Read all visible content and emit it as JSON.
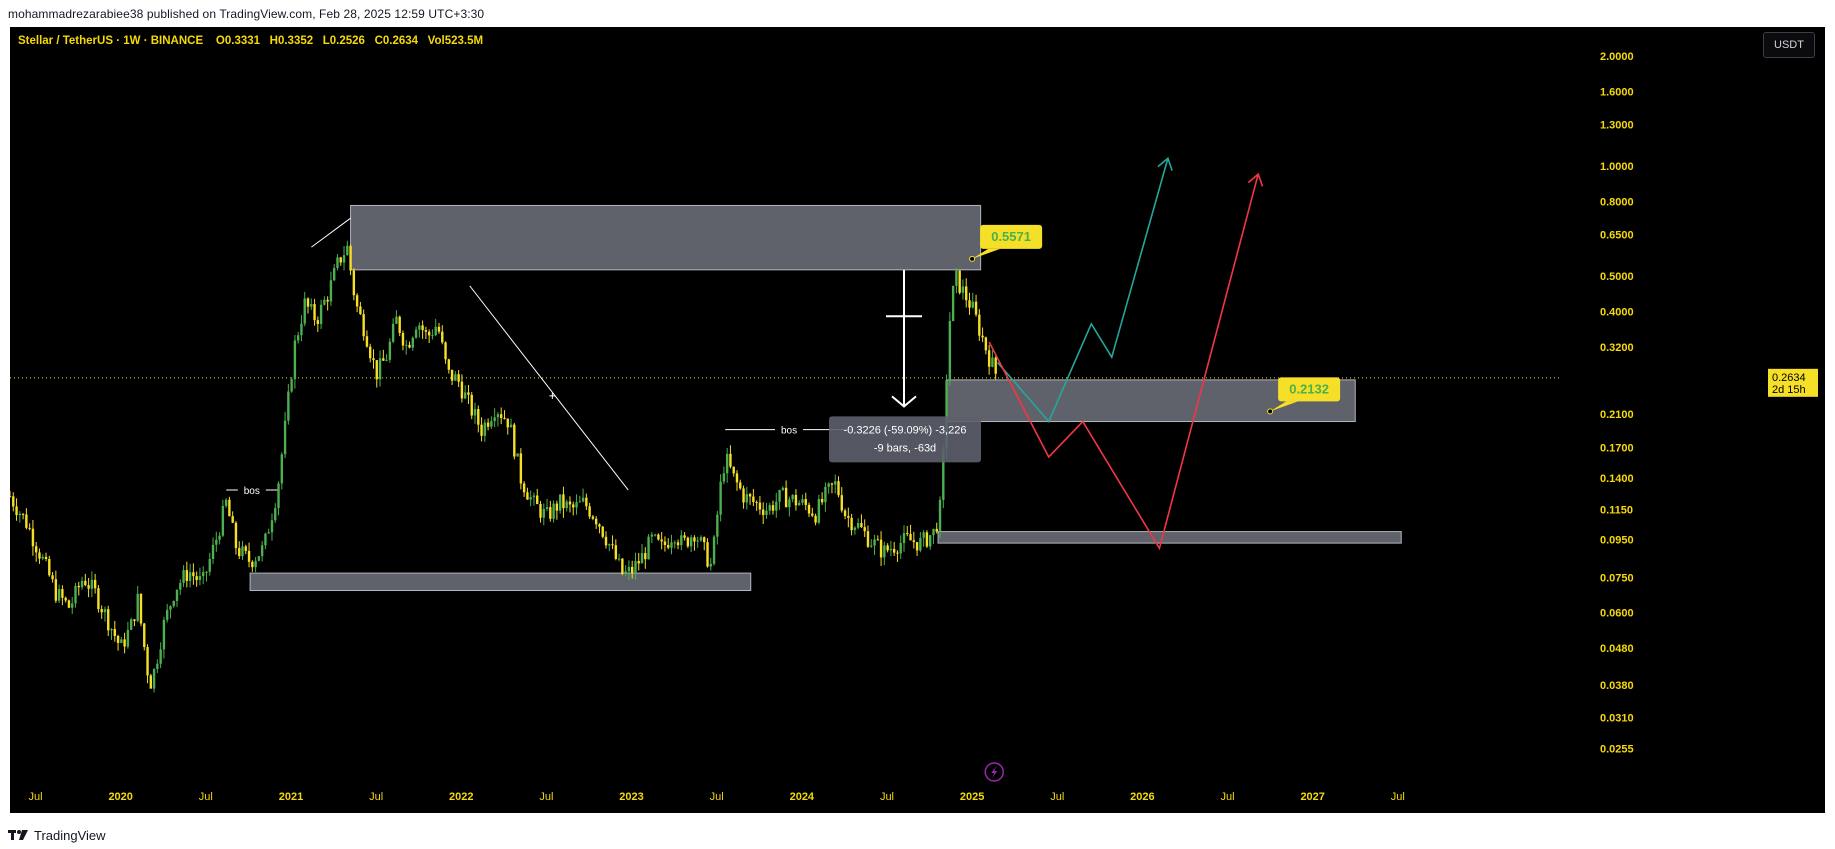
{
  "header": {
    "publish_text": "mohammadrezarabiee38 published on TradingView.com, Feb 28, 2025 12:59 UTC+3:30"
  },
  "symbol": {
    "name": "Stellar / TetherUS",
    "interval": "1W",
    "exchange": "BINANCE",
    "open": "O0.3331",
    "high": "H0.3352",
    "low": "L0.2526",
    "close": "C0.2634",
    "volume": "Vol523.5M"
  },
  "currency_button": "USDT",
  "footer": {
    "brand": "TradingView"
  },
  "colors": {
    "background": "#000000",
    "candle_up": "#4caf50",
    "candle_down": "#f5e027",
    "zone_fill": "#787b86",
    "projection_green": "#26a69a",
    "projection_red": "#f23645",
    "label_bg": "#f5e027",
    "label_text": "#4caf50",
    "axis_text": "#f5d90a"
  },
  "chart_data": {
    "type": "candlestick",
    "scale": "log",
    "y_axis": {
      "ticks": [
        "2.0000",
        "1.6000",
        "1.3000",
        "1.0000",
        "0.8000",
        "0.6500",
        "0.5000",
        "0.4000",
        "0.3200",
        "0.2100",
        "0.1700",
        "0.1400",
        "0.1150",
        "0.0950",
        "0.0750",
        "0.0600",
        "0.0480",
        "0.0380",
        "0.0310",
        "0.0255"
      ],
      "tick_values": [
        2.0,
        1.6,
        1.3,
        1.0,
        0.8,
        0.65,
        0.5,
        0.4,
        0.32,
        0.21,
        0.17,
        0.14,
        0.115,
        0.095,
        0.075,
        0.06,
        0.048,
        0.038,
        0.031,
        0.0255
      ],
      "range": [
        0.022,
        2.4
      ]
    },
    "x_axis": {
      "ticks": [
        "Jul",
        "2020",
        "Jul",
        "2021",
        "Jul",
        "2022",
        "Jul",
        "2023",
        "Jul",
        "2024",
        "Jul",
        "2025",
        "Jul",
        "2026",
        "Jul",
        "2027",
        "Jul"
      ],
      "tick_years": [
        2019.5,
        2020.0,
        2020.5,
        2021.0,
        2021.5,
        2022.0,
        2022.5,
        2023.0,
        2023.5,
        2024.0,
        2024.5,
        2025.0,
        2025.5,
        2026.0,
        2026.5,
        2027.0,
        2027.5
      ],
      "range": [
        2019.35,
        2028.1
      ]
    },
    "current_price": {
      "value": 0.2634,
      "label": "0.2634",
      "countdown": "2d 15h"
    },
    "price_path": [
      [
        2019.35,
        0.125
      ],
      [
        2019.45,
        0.105
      ],
      [
        2019.55,
        0.082
      ],
      [
        2019.62,
        0.068
      ],
      [
        2019.7,
        0.062
      ],
      [
        2019.78,
        0.075
      ],
      [
        2019.85,
        0.068
      ],
      [
        2019.92,
        0.058
      ],
      [
        2020.0,
        0.048
      ],
      [
        2020.06,
        0.055
      ],
      [
        2020.1,
        0.065
      ],
      [
        2020.17,
        0.038
      ],
      [
        2020.2,
        0.042
      ],
      [
        2020.25,
        0.055
      ],
      [
        2020.32,
        0.07
      ],
      [
        2020.4,
        0.078
      ],
      [
        2020.48,
        0.072
      ],
      [
        2020.56,
        0.095
      ],
      [
        2020.62,
        0.12
      ],
      [
        2020.68,
        0.09
      ],
      [
        2020.76,
        0.083
      ],
      [
        2020.84,
        0.09
      ],
      [
        2020.92,
        0.13
      ],
      [
        2020.97,
        0.2
      ],
      [
        2021.02,
        0.32
      ],
      [
        2021.08,
        0.42
      ],
      [
        2021.15,
        0.38
      ],
      [
        2021.22,
        0.45
      ],
      [
        2021.28,
        0.55
      ],
      [
        2021.33,
        0.6
      ],
      [
        2021.38,
        0.42
      ],
      [
        2021.44,
        0.35
      ],
      [
        2021.5,
        0.27
      ],
      [
        2021.56,
        0.3
      ],
      [
        2021.62,
        0.38
      ],
      [
        2021.68,
        0.32
      ],
      [
        2021.74,
        0.38
      ],
      [
        2021.8,
        0.34
      ],
      [
        2021.86,
        0.37
      ],
      [
        2021.92,
        0.27
      ],
      [
        2021.98,
        0.26
      ],
      [
        2022.05,
        0.22
      ],
      [
        2022.12,
        0.19
      ],
      [
        2022.2,
        0.22
      ],
      [
        2022.28,
        0.2
      ],
      [
        2022.35,
        0.14
      ],
      [
        2022.42,
        0.12
      ],
      [
        2022.5,
        0.11
      ],
      [
        2022.58,
        0.12
      ],
      [
        2022.65,
        0.115
      ],
      [
        2022.72,
        0.12
      ],
      [
        2022.8,
        0.108
      ],
      [
        2022.88,
        0.09
      ],
      [
        2022.95,
        0.076
      ],
      [
        2023.0,
        0.078
      ],
      [
        2023.06,
        0.085
      ],
      [
        2023.12,
        0.095
      ],
      [
        2023.18,
        0.09
      ],
      [
        2023.25,
        0.1
      ],
      [
        2023.3,
        0.092
      ],
      [
        2023.37,
        0.1
      ],
      [
        2023.42,
        0.09
      ],
      [
        2023.47,
        0.08
      ],
      [
        2023.52,
        0.13
      ],
      [
        2023.55,
        0.16
      ],
      [
        2023.6,
        0.14
      ],
      [
        2023.66,
        0.125
      ],
      [
        2023.72,
        0.12
      ],
      [
        2023.8,
        0.115
      ],
      [
        2023.88,
        0.125
      ],
      [
        2023.95,
        0.122
      ],
      [
        2024.02,
        0.118
      ],
      [
        2024.08,
        0.112
      ],
      [
        2024.15,
        0.128
      ],
      [
        2024.2,
        0.135
      ],
      [
        2024.26,
        0.11
      ],
      [
        2024.32,
        0.105
      ],
      [
        2024.4,
        0.095
      ],
      [
        2024.48,
        0.088
      ],
      [
        2024.55,
        0.092
      ],
      [
        2024.62,
        0.095
      ],
      [
        2024.7,
        0.093
      ],
      [
        2024.78,
        0.1
      ],
      [
        2024.82,
        0.12
      ],
      [
        2024.86,
        0.35
      ],
      [
        2024.9,
        0.5
      ],
      [
        2024.95,
        0.45
      ],
      [
        2025.0,
        0.41
      ],
      [
        2025.05,
        0.35
      ],
      [
        2025.1,
        0.3
      ],
      [
        2025.15,
        0.2634
      ]
    ],
    "zones": [
      {
        "x0": 2021.35,
        "x1": 2025.05,
        "y0": 0.52,
        "y1": 0.78
      },
      {
        "x0": 2020.76,
        "x1": 2023.7,
        "y0": 0.069,
        "y1": 0.077
      },
      {
        "x0": 2024.85,
        "x1": 2027.25,
        "y0": 0.2,
        "y1": 0.26
      },
      {
        "x0": 2024.8,
        "x1": 2027.52,
        "y0": 0.093,
        "y1": 0.1
      }
    ],
    "price_labels": [
      {
        "text": "0.5571",
        "year": 2025.0,
        "value": 0.5571
      },
      {
        "text": "0.2132",
        "year": 2026.75,
        "value": 0.2132
      }
    ],
    "measurement": {
      "line1": "-0.3226 (-59.09%) -3,226",
      "line2": "-9 bars, -63d",
      "year": 2024.6,
      "top": 0.52,
      "bottom": 0.22
    },
    "bos_labels": [
      {
        "text": "bos",
        "year_start": 2020.62,
        "year_end": 2020.92,
        "value": 0.13
      },
      {
        "text": "bos",
        "year_start": 2023.55,
        "year_end": 2024.3,
        "value": 0.19
      }
    ],
    "trendlines": [
      {
        "points": [
          [
            2021.12,
            0.6
          ],
          [
            2021.35,
            0.72
          ]
        ],
        "color": "#ffffff"
      },
      {
        "points": [
          [
            2022.05,
            0.47
          ],
          [
            2022.98,
            0.13
          ]
        ],
        "color": "#ffffff"
      }
    ],
    "projections": [
      {
        "color": "#26a69a",
        "points": [
          [
            2025.15,
            0.29
          ],
          [
            2025.45,
            0.2
          ],
          [
            2025.7,
            0.37
          ],
          [
            2025.82,
            0.3
          ],
          [
            2026.15,
            1.05
          ]
        ]
      },
      {
        "color": "#f23645",
        "points": [
          [
            2025.1,
            0.33
          ],
          [
            2025.45,
            0.16
          ],
          [
            2025.65,
            0.2
          ],
          [
            2026.1,
            0.09
          ],
          [
            2026.68,
            0.95
          ]
        ]
      }
    ],
    "grid": false,
    "legend": "none"
  }
}
